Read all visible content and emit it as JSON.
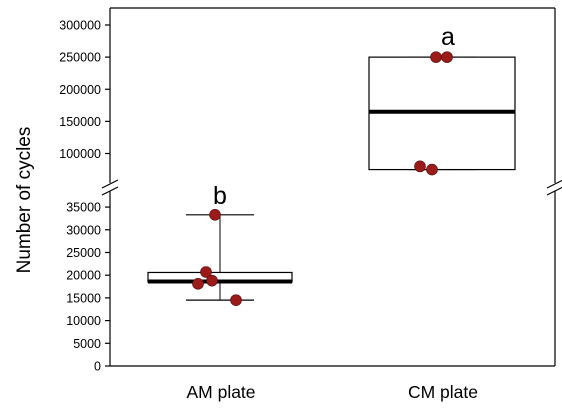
{
  "chart_data": {
    "type": "box",
    "ylabel": "Number of cycles",
    "categories": [
      "AM plate",
      "CM plate"
    ],
    "axis_break": true,
    "lower_segment": {
      "ylim": [
        0,
        37000
      ],
      "ticks": [
        0,
        5000,
        10000,
        15000,
        20000,
        25000,
        30000,
        35000
      ],
      "tick_labels": [
        "0",
        "5000",
        "10000",
        "15000",
        "20000",
        "25000",
        "30000",
        "35000"
      ]
    },
    "upper_segment": {
      "ylim": [
        65000,
        300000
      ],
      "ticks": [
        100000,
        150000,
        200000,
        250000,
        300000
      ],
      "tick_labels": [
        "100000",
        "150000",
        "200000",
        "250000",
        "300000"
      ]
    },
    "series": [
      {
        "category": "AM plate",
        "box": {
          "q1": 18500,
          "median": 18600,
          "q3": 20600,
          "whisker_low": 14500,
          "whisker_high": 33300
        },
        "points": [
          33300,
          20700,
          18800,
          18100,
          14500
        ],
        "significance": "b"
      },
      {
        "category": "CM plate",
        "box": {
          "q1": 75000,
          "median": 165000,
          "q3": 250000,
          "whisker_low": 75000,
          "whisker_high": 250000
        },
        "points": [
          250000,
          250000,
          80000,
          75000
        ],
        "significance": "a"
      }
    ],
    "point_color": "#9b1b1b",
    "grid": false,
    "legend": "none"
  }
}
